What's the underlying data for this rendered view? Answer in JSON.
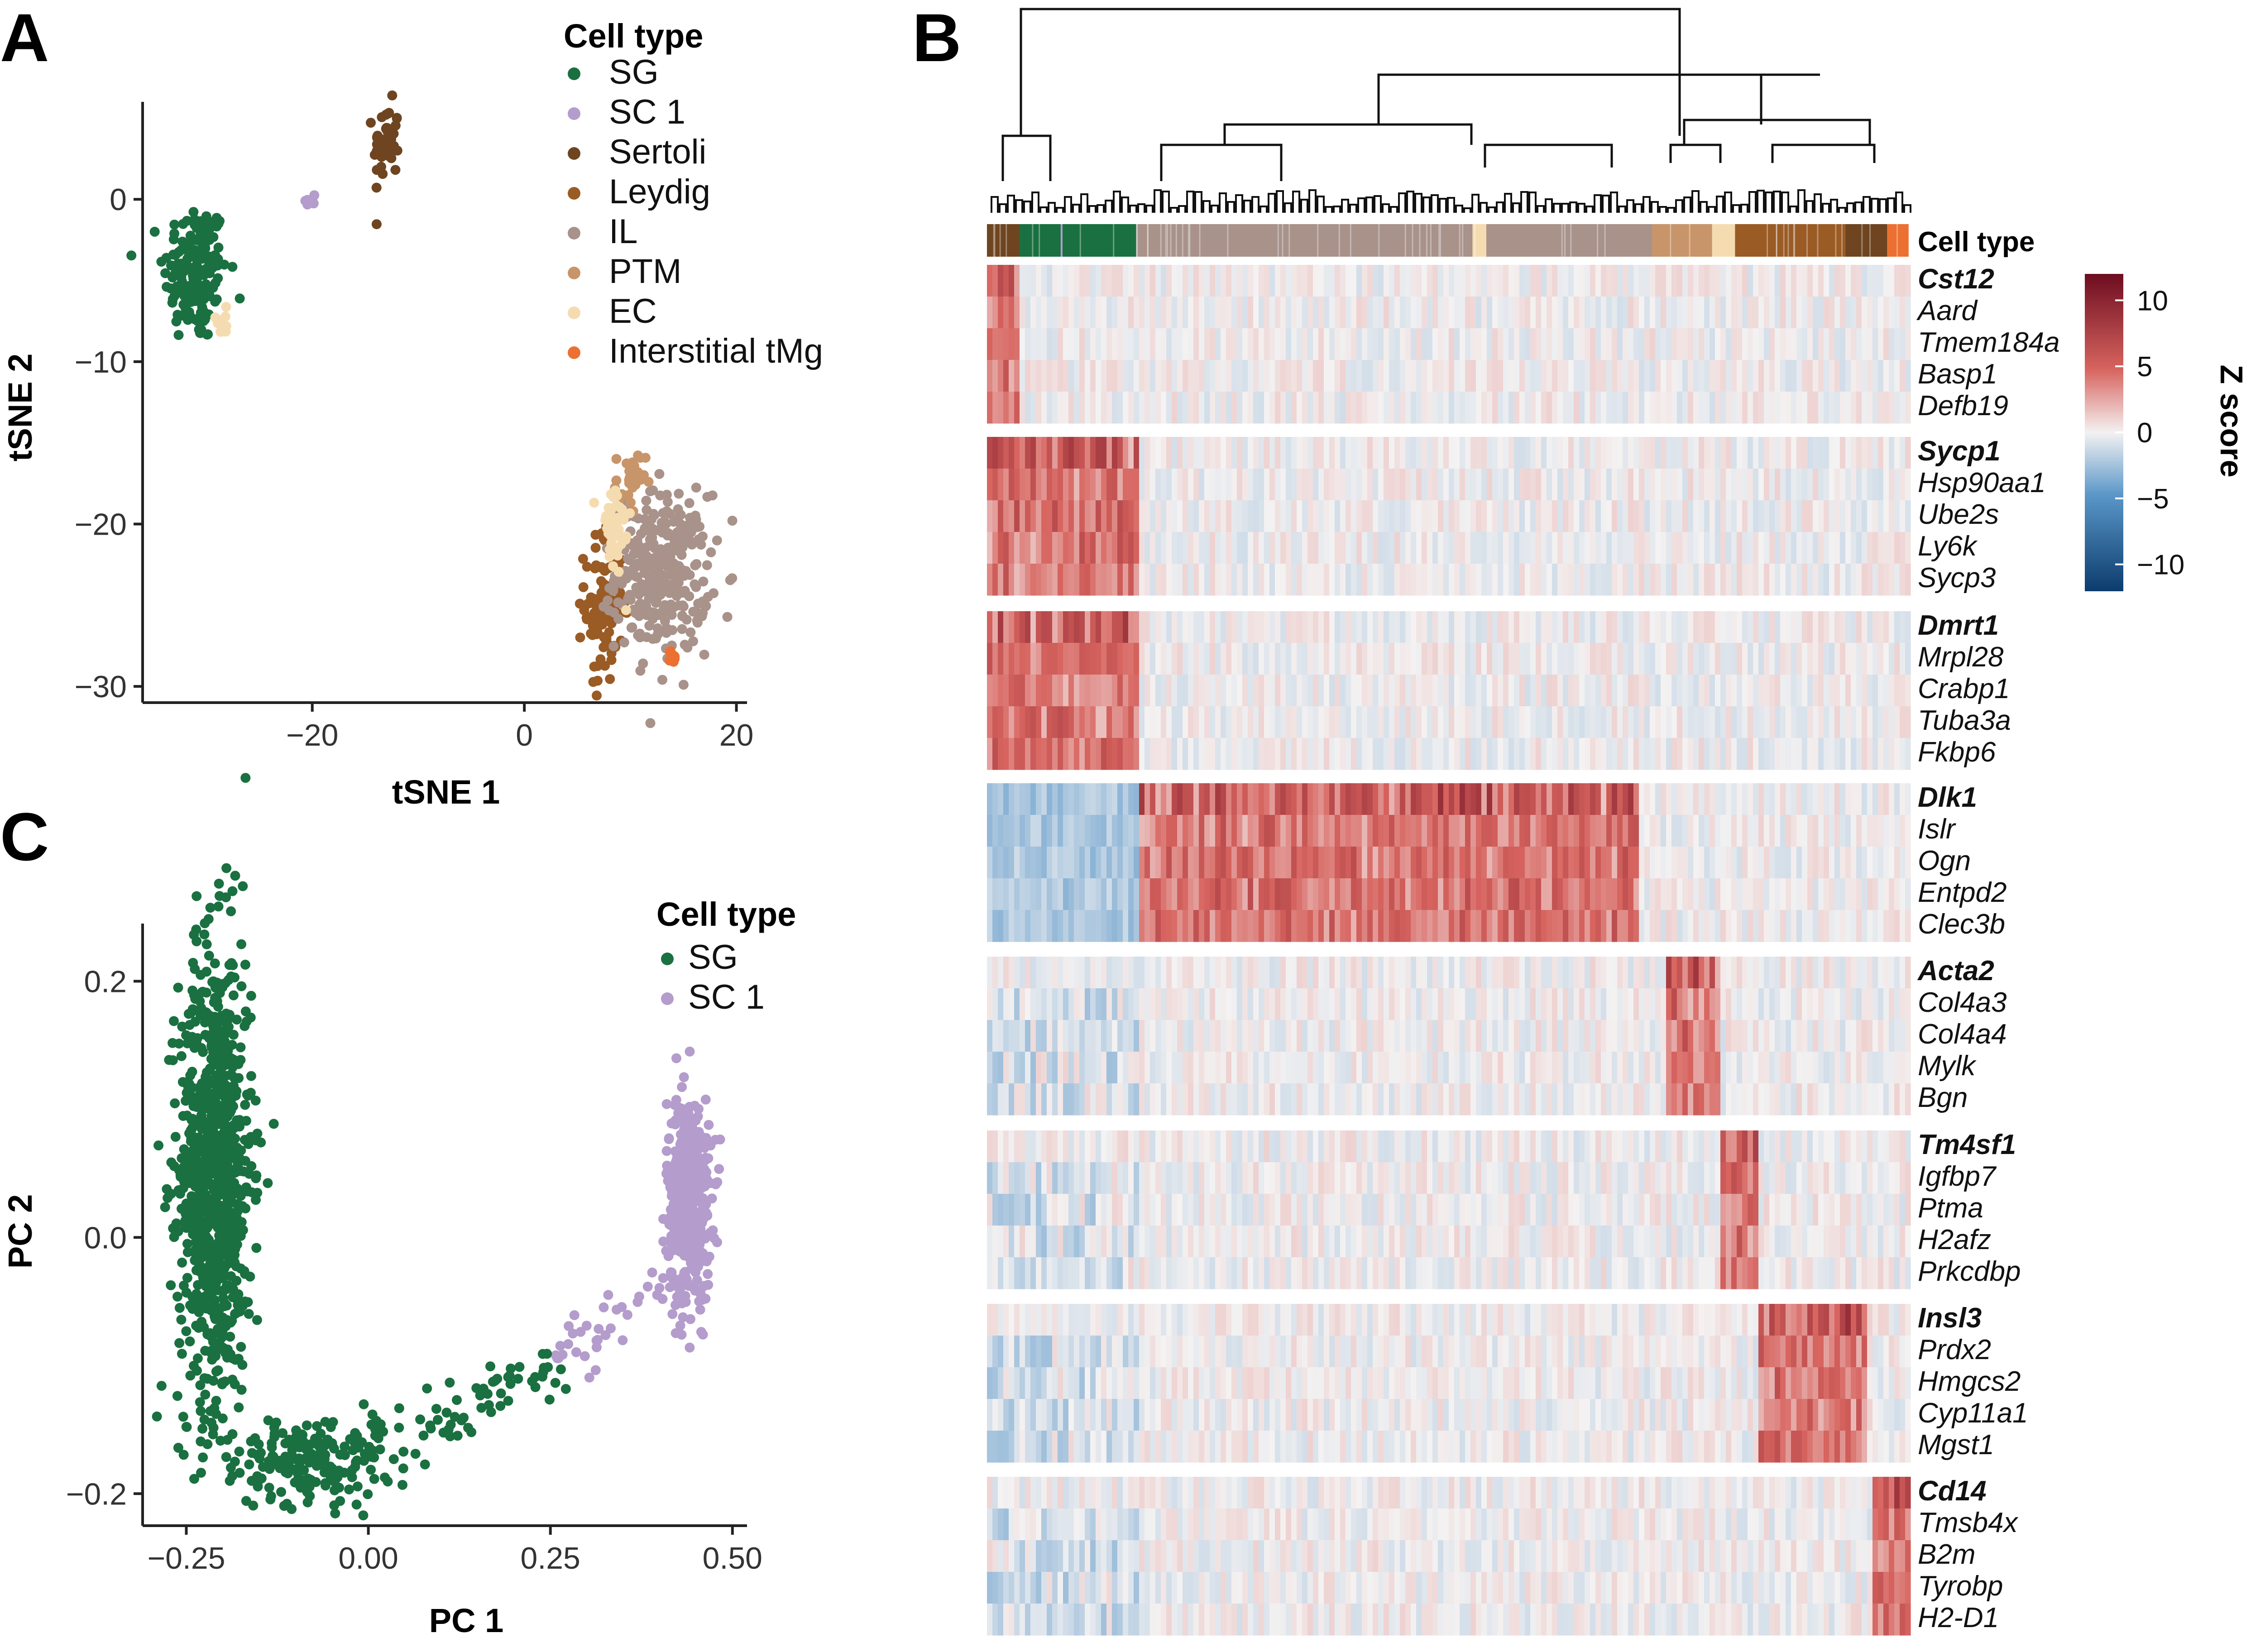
{
  "panels": {
    "A": {
      "letter": "A"
    },
    "B": {
      "letter": "B"
    },
    "C": {
      "letter": "C"
    }
  },
  "cell_colors": {
    "SG": "#1a7040",
    "SC 1": "#b49ccc",
    "Sertoli": "#6e4520",
    "Leydig": "#9a5b25",
    "IL": "#a8928a",
    "PTM": "#c8956a",
    "EC": "#f5dcb0",
    "Interstitial tMg": "#ec7032"
  },
  "chart_data": [
    {
      "panel": "A",
      "type": "scatter",
      "xlabel": "tSNE 1",
      "ylabel": "tSNE 2",
      "xlim": [
        -36,
        21
      ],
      "ylim": [
        -31,
        6
      ],
      "xticks": [
        -20,
        0,
        20
      ],
      "yticks": [
        0,
        -10,
        -20,
        -30
      ],
      "grid": false,
      "legend": {
        "title": "Cell type",
        "position": "top-right",
        "entries": [
          "SG",
          "SC 1",
          "Sertoli",
          "Leydig",
          "IL",
          "PTM",
          "EC",
          "Interstitial tMg"
        ]
      },
      "clusters": [
        {
          "name": "SG",
          "center": [
            -31,
            -4.5
          ],
          "spread": [
            1.5,
            2.2
          ],
          "n": 170
        },
        {
          "name": "SC 1",
          "center": [
            -20,
            -0.2
          ],
          "spread": [
            0.4,
            0.3
          ],
          "n": 8
        },
        {
          "name": "Sertoli",
          "center": [
            -13,
            3.5
          ],
          "spread": [
            0.6,
            1.2
          ],
          "n": 45
        },
        {
          "name": "Leydig",
          "center": [
            7.5,
            -25
          ],
          "spread": [
            0.9,
            2.4
          ],
          "n": 110
        },
        {
          "name": "IL",
          "center": [
            13,
            -23
          ],
          "spread": [
            2.2,
            2.4
          ],
          "n": 320
        },
        {
          "name": "PTM",
          "center": [
            10,
            -17.5
          ],
          "spread": [
            0.7,
            1.0
          ],
          "n": 30
        },
        {
          "name": "EC",
          "center": [
            8.5,
            -20.5
          ],
          "spread": [
            0.8,
            1.6
          ],
          "n": 40
        },
        {
          "name": "EC",
          "center": [
            -28.5,
            -7.5
          ],
          "spread": [
            0.5,
            0.4
          ],
          "n": 10
        },
        {
          "name": "Interstitial tMg",
          "center": [
            14,
            -28.3
          ],
          "spread": [
            0.4,
            0.25
          ],
          "n": 10
        }
      ]
    },
    {
      "panel": "B",
      "type": "heatmap",
      "colorbar": {
        "title": "Z score",
        "ticks": [
          10,
          5,
          0,
          -5,
          -10
        ],
        "range": [
          -12,
          12
        ],
        "low": "#0d3d6e",
        "mid": "#f4f2f2",
        "high": "#6e0e21"
      },
      "annotation_label": "Cell type",
      "column_groups": [
        {
          "type": "Sertoli",
          "fraction": 0.035
        },
        {
          "type": "SG",
          "fraction": 0.045
        },
        {
          "type": "SC 1",
          "fraction": 0.002
        },
        {
          "type": "SG",
          "fraction": 0.08
        },
        {
          "type": "IL",
          "fraction": 0.365
        },
        {
          "type": "EC",
          "fraction": 0.015
        },
        {
          "type": "IL",
          "fraction": 0.18
        },
        {
          "type": "PTM",
          "fraction": 0.065
        },
        {
          "type": "EC",
          "fraction": 0.025
        },
        {
          "type": "Leydig",
          "fraction": 0.12
        },
        {
          "type": "Sertoli",
          "fraction": 0.045
        },
        {
          "type": "Interstitial tMg",
          "fraction": 0.023
        }
      ],
      "gene_blocks": [
        {
          "genes": [
            "Cst12",
            "Aard",
            "Tmem184a",
            "Basp1",
            "Defb19"
          ],
          "high_in": [
            0.0,
            0.035
          ]
        },
        {
          "genes": [
            "Sycp1",
            "Hsp90aa1",
            "Ube2s",
            "Ly6k",
            "Sycp3"
          ],
          "high_in": [
            0.0,
            0.16
          ]
        },
        {
          "genes": [
            "Dmrt1",
            "Mrpl28",
            "Crabp1",
            "Tuba3a",
            "Fkbp6"
          ],
          "high_in": [
            0.0,
            0.16
          ]
        },
        {
          "genes": [
            "Dlk1",
            "Islr",
            "Ogn",
            "Entpd2",
            "Clec3b"
          ],
          "high_in": [
            0.16,
            0.7
          ]
        },
        {
          "genes": [
            "Acta2",
            "Col4a3",
            "Col4a4",
            "Mylk",
            "Bgn"
          ],
          "high_in": [
            0.73,
            0.79
          ]
        },
        {
          "genes": [
            "Tm4sf1",
            "Igfbp7",
            "Ptma",
            "H2afz",
            "Prkcdbp"
          ],
          "high_in": [
            0.79,
            0.83
          ]
        },
        {
          "genes": [
            "Insl3",
            "Prdx2",
            "Hmgcs2",
            "Cyp11a1",
            "Mgst1"
          ],
          "high_in": [
            0.83,
            0.95
          ]
        },
        {
          "genes": [
            "Cd14",
            "Tmsb4x",
            "B2m",
            "Tyrobp",
            "H2-D1"
          ],
          "high_in": [
            0.955,
            1.0
          ]
        }
      ]
    },
    {
      "panel": "C",
      "type": "scatter",
      "xlabel": "PC 1",
      "ylabel": "PC 2",
      "xlim": [
        -0.31,
        0.52
      ],
      "ylim": [
        -0.225,
        0.245
      ],
      "xticks": [
        -0.25,
        0.0,
        0.25,
        0.5
      ],
      "xtick_labels": [
        "−0.25",
        "0.00",
        "0.25",
        "0.50"
      ],
      "yticks": [
        0.2,
        0.0,
        -0.2
      ],
      "ytick_labels": [
        "0.2",
        "0.0",
        "−0.2"
      ],
      "grid": false,
      "legend": {
        "title": "Cell type",
        "position": "top-right",
        "entries": [
          "SG",
          "SC 1"
        ]
      },
      "clusters": [
        {
          "name": "SG",
          "center": [
            -0.21,
            0.05
          ],
          "spread": [
            0.025,
            0.09
          ],
          "n": 900
        },
        {
          "name": "SG",
          "center": [
            -0.08,
            -0.18
          ],
          "spread": [
            0.05,
            0.015
          ],
          "n": 120
        },
        {
          "name": "SC 1",
          "center": [
            0.44,
            0.03
          ],
          "spread": [
            0.015,
            0.04
          ],
          "n": 500
        }
      ]
    }
  ]
}
